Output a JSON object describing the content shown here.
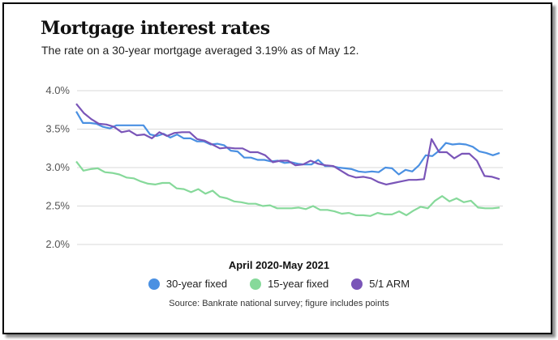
{
  "chart_data": {
    "type": "line",
    "title": "Mortgage interest rates",
    "subtitle": "The rate on a 30-year mortgage averaged 3.19% as of May 12.",
    "xlabel": "April 2020-May 2021",
    "ylabel": "",
    "source": "Source: Bankrate national survey; figure includes points",
    "ylim": [
      2.0,
      4.0
    ],
    "yticks": [
      "4.0%",
      "3.5%",
      "3.0%",
      "2.5%",
      "2.0%"
    ],
    "ytick_values": [
      4.0,
      3.5,
      3.0,
      2.5,
      2.0
    ],
    "grid": true,
    "legend_position": "bottom",
    "series": [
      {
        "name": "30-year fixed",
        "color": "#4a90e2",
        "values": [
          3.73,
          3.58,
          3.58,
          3.57,
          3.53,
          3.51,
          3.55,
          3.55,
          3.55,
          3.55,
          3.55,
          3.43,
          3.41,
          3.44,
          3.39,
          3.43,
          3.38,
          3.38,
          3.34,
          3.34,
          3.3,
          3.31,
          3.29,
          3.22,
          3.21,
          3.13,
          3.13,
          3.1,
          3.1,
          3.08,
          3.09,
          3.06,
          3.07,
          3.05,
          3.04,
          3.04,
          3.1,
          3.02,
          3.02,
          3.0,
          2.99,
          2.98,
          2.95,
          2.94,
          2.95,
          2.94,
          3.0,
          2.99,
          2.91,
          2.97,
          2.95,
          3.03,
          3.16,
          3.15,
          3.22,
          3.32,
          3.3,
          3.31,
          3.3,
          3.27,
          3.21,
          3.19,
          3.16,
          3.19
        ]
      },
      {
        "name": "15-year fixed",
        "color": "#86d99a",
        "values": [
          3.08,
          2.96,
          2.98,
          2.99,
          2.94,
          2.93,
          2.91,
          2.87,
          2.86,
          2.82,
          2.79,
          2.78,
          2.8,
          2.8,
          2.73,
          2.72,
          2.68,
          2.72,
          2.66,
          2.7,
          2.62,
          2.6,
          2.56,
          2.55,
          2.53,
          2.53,
          2.5,
          2.51,
          2.47,
          2.47,
          2.47,
          2.48,
          2.46,
          2.5,
          2.45,
          2.45,
          2.43,
          2.4,
          2.41,
          2.38,
          2.38,
          2.37,
          2.41,
          2.39,
          2.39,
          2.43,
          2.38,
          2.44,
          2.49,
          2.47,
          2.57,
          2.63,
          2.56,
          2.6,
          2.55,
          2.57,
          2.48,
          2.47,
          2.47,
          2.48
        ]
      },
      {
        "name": "5/1 ARM",
        "color": "#7a55b8",
        "values": [
          3.83,
          3.71,
          3.63,
          3.57,
          3.56,
          3.53,
          3.46,
          3.48,
          3.42,
          3.43,
          3.38,
          3.46,
          3.41,
          3.45,
          3.46,
          3.46,
          3.37,
          3.35,
          3.3,
          3.25,
          3.26,
          3.25,
          3.25,
          3.2,
          3.2,
          3.16,
          3.07,
          3.09,
          3.09,
          3.03,
          3.04,
          3.09,
          3.05,
          3.03,
          3.02,
          2.96,
          2.9,
          2.87,
          2.88,
          2.86,
          2.81,
          2.78,
          2.8,
          2.82,
          2.84,
          2.84,
          2.85,
          3.37,
          3.2,
          3.2,
          3.12,
          3.18,
          3.18,
          3.09,
          2.89,
          2.88,
          2.85
        ]
      }
    ]
  }
}
